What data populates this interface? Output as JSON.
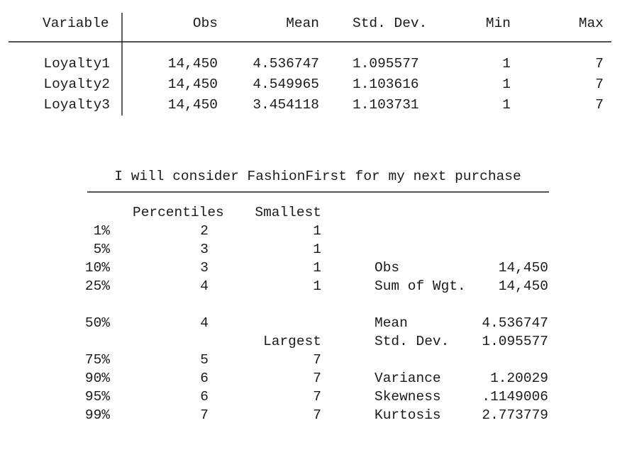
{
  "summary": {
    "headers": [
      "Variable",
      "Obs",
      "Mean",
      "Std. Dev.",
      "Min",
      "Max"
    ],
    "rows": [
      [
        "Loyalty1",
        "14,450",
        "4.536747",
        "1.095577",
        "1",
        "7"
      ],
      [
        "Loyalty2",
        "14,450",
        "4.549965",
        "1.103616",
        "1",
        "7"
      ],
      [
        "Loyalty3",
        "14,450",
        "3.454118",
        "1.103731",
        "1",
        "7"
      ]
    ]
  },
  "detail": {
    "title": "I will consider FashionFirst for my next purchase",
    "percentiles_header": "Percentiles",
    "smallest_header": "Smallest",
    "largest_header": "Largest",
    "rows": [
      {
        "pct": "1%",
        "value": "2",
        "extreme": "1"
      },
      {
        "pct": "5%",
        "value": "3",
        "extreme": "1"
      },
      {
        "pct": "10%",
        "value": "3",
        "extreme": "1",
        "stat": "Obs",
        "stat_value": "14,450"
      },
      {
        "pct": "25%",
        "value": "4",
        "extreme": "1",
        "stat": "Sum of Wgt.",
        "stat_value": "14,450"
      },
      {
        "pct": "50%",
        "value": "4",
        "stat": "Mean",
        "stat_value": "4.536747"
      },
      {
        "stat": "Std. Dev.",
        "stat_value": "1.095577"
      },
      {
        "pct": "75%",
        "value": "5",
        "extreme": "7"
      },
      {
        "pct": "90%",
        "value": "6",
        "extreme": "7",
        "stat": "Variance",
        "stat_value": "1.20029"
      },
      {
        "pct": "95%",
        "value": "6",
        "extreme": "7",
        "stat": "Skewness",
        "stat_value": ".1149006"
      },
      {
        "pct": "99%",
        "value": "7",
        "extreme": "7",
        "stat": "Kurtosis",
        "stat_value": "2.773779"
      }
    ]
  }
}
